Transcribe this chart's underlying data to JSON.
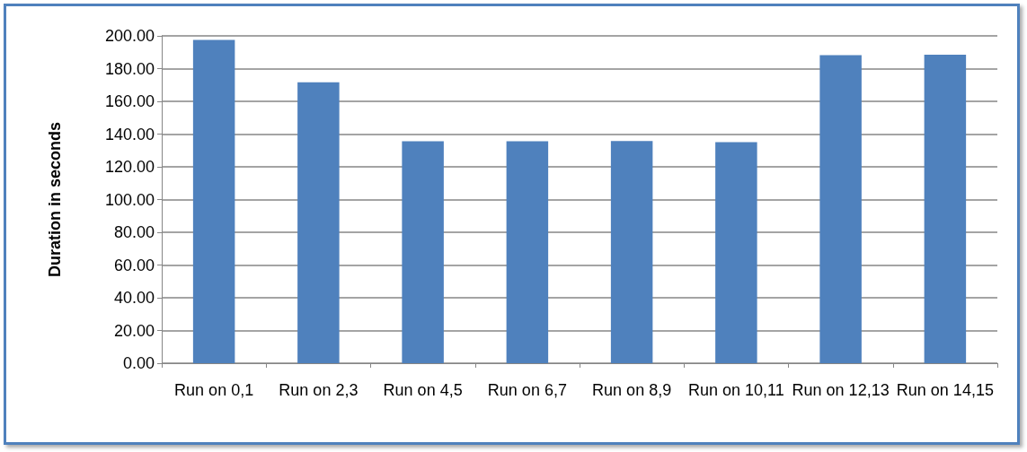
{
  "chart_data": {
    "type": "bar",
    "ylabel": "Duration in seconds",
    "categories": [
      "Run on 0,1",
      "Run on 2,3",
      "Run on 4,5",
      "Run on 6,7",
      "Run on 8,9",
      "Run on 10,11",
      "Run on 12,13",
      "Run on 14,15"
    ],
    "values": [
      197.6,
      171.6,
      135.6,
      135.6,
      135.8,
      135.1,
      188.2,
      188.5
    ],
    "color": "#4f81bd",
    "ylim": [
      0,
      200
    ],
    "yticks": [
      {
        "value": 0,
        "label": "0.00"
      },
      {
        "value": 20,
        "label": "20.00"
      },
      {
        "value": 40,
        "label": "40.00"
      },
      {
        "value": 60,
        "label": "60.00"
      },
      {
        "value": 80,
        "label": "80.00"
      },
      {
        "value": 100,
        "label": "100.00"
      },
      {
        "value": 120,
        "label": "120.00"
      },
      {
        "value": 140,
        "label": "140.00"
      },
      {
        "value": 160,
        "label": "160.00"
      },
      {
        "value": 180,
        "label": "180.00"
      },
      {
        "value": 200,
        "label": "200.00"
      }
    ],
    "grid": "y"
  }
}
